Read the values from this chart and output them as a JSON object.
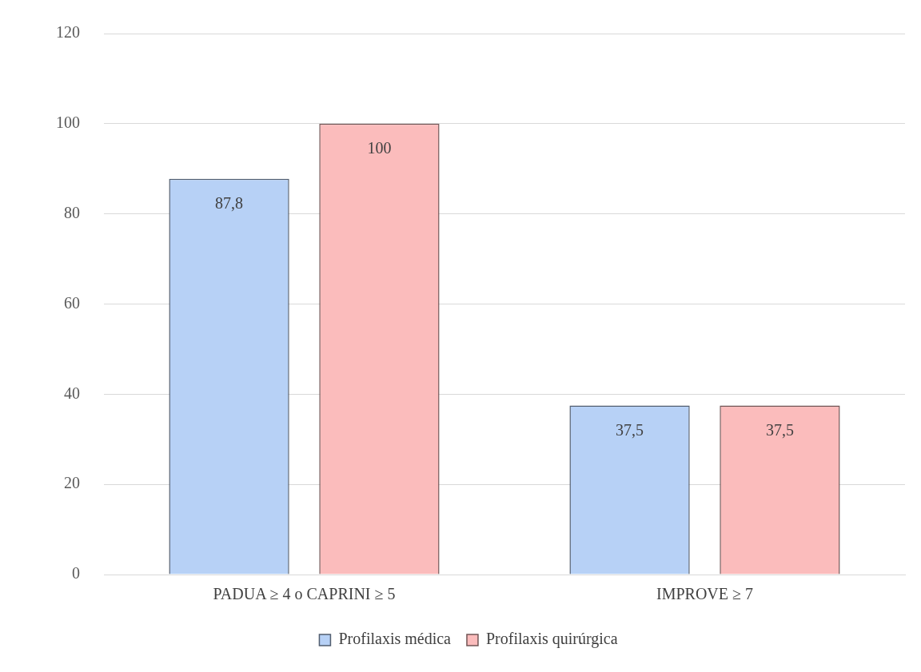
{
  "chart_data": {
    "type": "bar",
    "categories": [
      "PADUA ≥ 4 o CAPRINI ≥ 5",
      "IMPROVE ≥ 7"
    ],
    "series": [
      {
        "name": "Profilaxis médica",
        "color": "#b7d1f6",
        "values": [
          87.8,
          37.5
        ],
        "value_labels": [
          "87,8",
          "37,5"
        ]
      },
      {
        "name": "Profilaxis quirúrgica",
        "color": "#fbbcbc",
        "values": [
          100,
          37.5
        ],
        "value_labels": [
          "100",
          "37,5"
        ]
      }
    ],
    "ylim": [
      0,
      120
    ],
    "yticks": [
      0,
      20,
      40,
      60,
      80,
      100,
      120
    ],
    "grid": "y",
    "legend": "bottom"
  }
}
